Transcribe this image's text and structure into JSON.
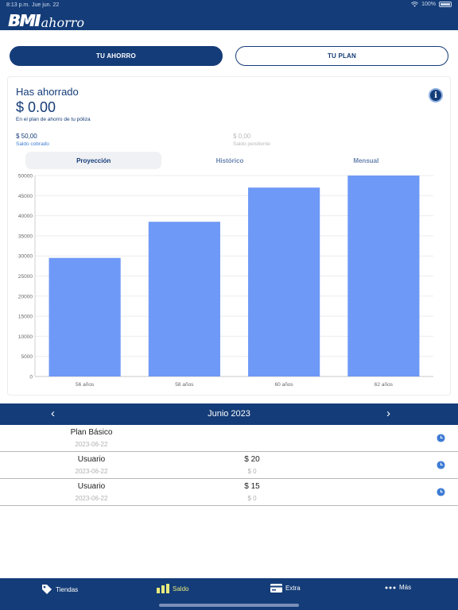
{
  "status": {
    "time": "8:13 p.m.",
    "date": "Jue jun. 22",
    "battery": "100%"
  },
  "brand": {
    "logo_main": "BMI",
    "logo_sub": "ahorro"
  },
  "segments": {
    "ahorro": "TU AHORRO",
    "plan": "TU PLAN"
  },
  "summary": {
    "heading": "Has ahorrado",
    "amount": "$ 0.00",
    "subtitle": "En el plan de ahorro de tu póliza",
    "collected_value": "$ 50,00",
    "collected_label": "Saldo cobrado",
    "pending_value": "$ 0,00",
    "pending_label": "Saldo pendiente",
    "info_icon": "info-icon"
  },
  "chart_tabs": [
    "Proyección",
    "Histórico",
    "Mensual"
  ],
  "chart_data": {
    "type": "bar",
    "categories": [
      "56 años",
      "58 años",
      "60 años",
      "62 años"
    ],
    "values": [
      29500,
      38500,
      47000,
      50000
    ],
    "ylim": [
      0,
      50000
    ],
    "yticks": [
      0,
      5000,
      10000,
      15000,
      20000,
      25000,
      30000,
      35000,
      40000,
      45000,
      50000
    ],
    "bar_color": "#6e99f6",
    "grid": true
  },
  "month_nav": {
    "title": "Junio 2023",
    "prev": "‹",
    "next": "›"
  },
  "transactions": [
    {
      "name": "Plan Básico",
      "date": "2023-06-22",
      "amount": "",
      "amount_sub": ""
    },
    {
      "name": "Usuario",
      "date": "2023-06-22",
      "amount": "$ 20",
      "amount_sub": "$ 0"
    },
    {
      "name": "Usuario",
      "date": "2023-06-22",
      "amount": "$ 15",
      "amount_sub": "$ 0"
    }
  ],
  "tabbar": {
    "tiendas": "Tiendas",
    "saldo": "Saldo",
    "extra": "Extra",
    "mas": "Más",
    "active_color": "#e8ea7c"
  },
  "colors": {
    "primary": "#143c78",
    "accent": "#3f7cd4"
  }
}
